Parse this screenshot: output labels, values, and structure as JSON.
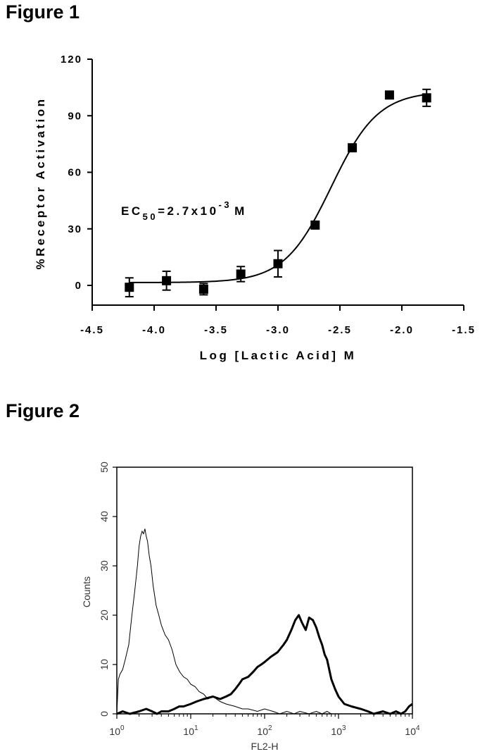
{
  "figure1": {
    "heading": "Figure 1",
    "chart_data": {
      "type": "scatter",
      "xlabel": "Log [Lactic Acid] M",
      "ylabel": "%Receptor Activation",
      "xlim": [
        -4.5,
        -1.5
      ],
      "ylim": [
        -10,
        120
      ],
      "xticks": [
        -4.5,
        -4.0,
        -3.5,
        -3.0,
        -2.5,
        -2.0,
        -1.5
      ],
      "xtick_labels": [
        "-4.5",
        "-4.0",
        "-3.5",
        "-3.0",
        "-2.5",
        "-2.0",
        "-1.5"
      ],
      "yticks": [
        0,
        30,
        60,
        90,
        120
      ],
      "ytick_labels": [
        "0",
        "30",
        "60",
        "90",
        "120"
      ],
      "annotation": {
        "prefix": "EC",
        "subscript": "50",
        "mid": "=2.7x10",
        "superscript": "-3",
        "suffix": "M"
      },
      "points": [
        {
          "x": -4.2,
          "y": -1,
          "err": 5
        },
        {
          "x": -3.9,
          "y": 2.5,
          "err": 5
        },
        {
          "x": -3.6,
          "y": -2,
          "err": 3
        },
        {
          "x": -3.3,
          "y": 6,
          "err": 4
        },
        {
          "x": -3.0,
          "y": 11.5,
          "err": 7
        },
        {
          "x": -2.7,
          "y": 32,
          "err": 1
        },
        {
          "x": -2.4,
          "y": 73,
          "err": 1
        },
        {
          "x": -2.1,
          "y": 101,
          "err": 1
        },
        {
          "x": -1.8,
          "y": 99.5,
          "err": 4.5
        }
      ],
      "fit": {
        "bottom": 1.5,
        "top": 103,
        "log_ec50": -2.57,
        "hill": 2.3
      }
    }
  },
  "figure2": {
    "heading": "Figure 2",
    "chart_data": {
      "type": "line",
      "xlabel": "FL2-H",
      "ylabel": "Counts",
      "x_scale": "log",
      "xlim": [
        1,
        10000
      ],
      "ylim": [
        0,
        50
      ],
      "xticks": [
        1,
        10,
        100,
        1000,
        10000
      ],
      "xtick_labels": [
        {
          "base": "10",
          "exp": "0"
        },
        {
          "base": "10",
          "exp": "1"
        },
        {
          "base": "10",
          "exp": "2"
        },
        {
          "base": "10",
          "exp": "3"
        },
        {
          "base": "10",
          "exp": "4"
        }
      ],
      "yticks": [
        0,
        10,
        20,
        30,
        40,
        50
      ],
      "ytick_labels": [
        "0",
        "10",
        "20",
        "30",
        "40",
        "50"
      ],
      "series": [
        {
          "style": "thin",
          "x": [
            1.0,
            1.05,
            1.1,
            1.2,
            1.3,
            1.45,
            1.6,
            1.75,
            1.9,
            2.0,
            2.1,
            2.2,
            2.3,
            2.4,
            2.5,
            2.6,
            2.75,
            2.9,
            3.1,
            3.4,
            3.7,
            4.0,
            4.5,
            5.0,
            5.6,
            6.3,
            7.1,
            8.0,
            9.0,
            10,
            11.5,
            13,
            15,
            17,
            20,
            25,
            30,
            40,
            50,
            60,
            80,
            100,
            130,
            160,
            200,
            250,
            300,
            400,
            500,
            600,
            700,
            800,
            1000,
            10000
          ],
          "y": [
            0,
            7,
            8,
            9,
            11,
            14,
            20,
            25,
            30,
            34,
            36,
            37,
            36.5,
            37.5,
            36,
            35,
            32,
            30,
            26,
            22,
            20,
            18,
            16,
            15,
            13,
            10,
            8.5,
            7.5,
            7,
            6,
            5.5,
            4.5,
            4,
            3,
            3.5,
            2.5,
            2,
            1.5,
            1,
            1,
            0.5,
            1,
            0.5,
            0,
            0.5,
            0,
            0.5,
            0,
            0.5,
            0,
            0.5,
            0,
            0,
            0
          ]
        },
        {
          "style": "thick",
          "x": [
            1.0,
            1.2,
            1.5,
            2.0,
            2.5,
            3.0,
            3.5,
            4.0,
            5.0,
            6.0,
            7.0,
            8.0,
            10,
            12,
            15,
            20,
            25,
            30,
            35,
            40,
            45,
            50,
            60,
            70,
            80,
            90,
            100,
            120,
            150,
            180,
            200,
            230,
            260,
            290,
            320,
            360,
            400,
            450,
            500,
            550,
            600,
            650,
            700,
            800,
            900,
            1000,
            1200,
            1500,
            2000,
            2500,
            3000,
            4000,
            5000,
            6000,
            7000,
            8000,
            9000,
            10000
          ],
          "y": [
            0,
            0.5,
            0,
            0.5,
            1,
            0.5,
            0,
            0.5,
            0.5,
            1,
            1.5,
            1.5,
            2,
            2.5,
            3,
            3.5,
            3,
            3.5,
            4,
            5,
            6,
            7,
            7.5,
            8.5,
            9.5,
            10,
            10.5,
            11.5,
            12.5,
            14,
            15,
            17,
            19,
            20,
            18.5,
            17,
            19.5,
            19,
            17.5,
            15.5,
            14,
            12,
            11,
            7,
            5,
            3.5,
            2,
            1.5,
            1,
            0.5,
            0,
            0.5,
            0,
            0.5,
            0,
            0.5,
            1.5,
            2
          ]
        }
      ]
    }
  }
}
